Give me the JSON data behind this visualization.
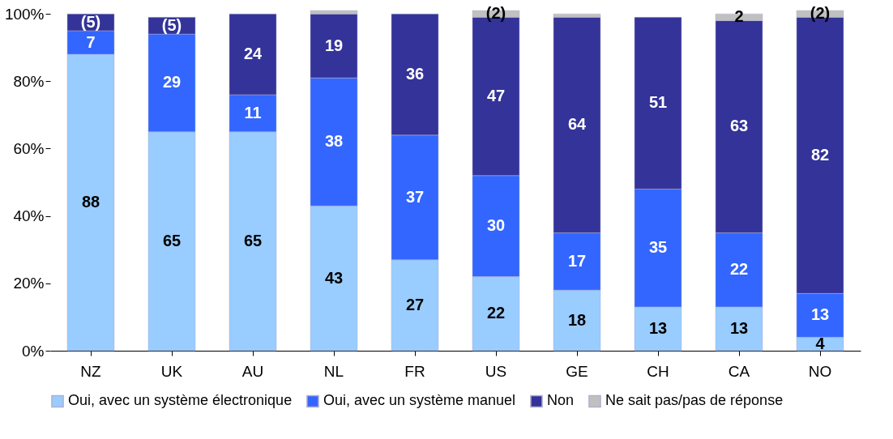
{
  "chart_data": {
    "type": "bar",
    "stacked": true,
    "categories": [
      "NZ",
      "UK",
      "AU",
      "NL",
      "FR",
      "US",
      "GE",
      "CH",
      "CA",
      "NO"
    ],
    "series": [
      {
        "name": "Oui, avec un système électronique",
        "color": "#99ccff",
        "values": [
          88,
          65,
          65,
          43,
          27,
          22,
          18,
          13,
          13,
          4
        ],
        "value_labels": [
          "88",
          "65",
          "65",
          "43",
          "27",
          "22",
          "18",
          "13",
          "13",
          "4"
        ]
      },
      {
        "name": "Oui, avec un système manuel",
        "color": "#3366ff",
        "values": [
          7,
          29,
          11,
          38,
          37,
          30,
          17,
          35,
          22,
          13
        ],
        "value_labels": [
          "7",
          "29",
          "11",
          "38",
          "37",
          "30",
          "17",
          "35",
          "22",
          "13"
        ]
      },
      {
        "name": "Non",
        "color": "#333399",
        "values": [
          5,
          5,
          24,
          19,
          36,
          47,
          64,
          51,
          63,
          82
        ],
        "value_labels": [
          "(5)",
          "(5)",
          "24",
          "19",
          "36",
          "47",
          "64",
          "51",
          "63",
          "82"
        ]
      },
      {
        "name": "Ne sait pas/pas de réponse",
        "color": "#c0c0c0",
        "values": [
          null,
          null,
          null,
          1,
          null,
          2,
          1,
          null,
          2,
          2
        ],
        "value_labels": [
          null,
          null,
          null,
          null,
          null,
          "(2)",
          null,
          null,
          "2",
          "(2)"
        ]
      }
    ],
    "ylim": [
      0,
      101
    ],
    "yticks": [
      {
        "value": 0,
        "label": "0%"
      },
      {
        "value": 20,
        "label": "20%"
      },
      {
        "value": 40,
        "label": "40%"
      },
      {
        "value": 60,
        "label": "60%"
      },
      {
        "value": 80,
        "label": "80%"
      },
      {
        "value": 100,
        "label": "100%"
      }
    ],
    "grid": false,
    "legend": "bottom"
  }
}
